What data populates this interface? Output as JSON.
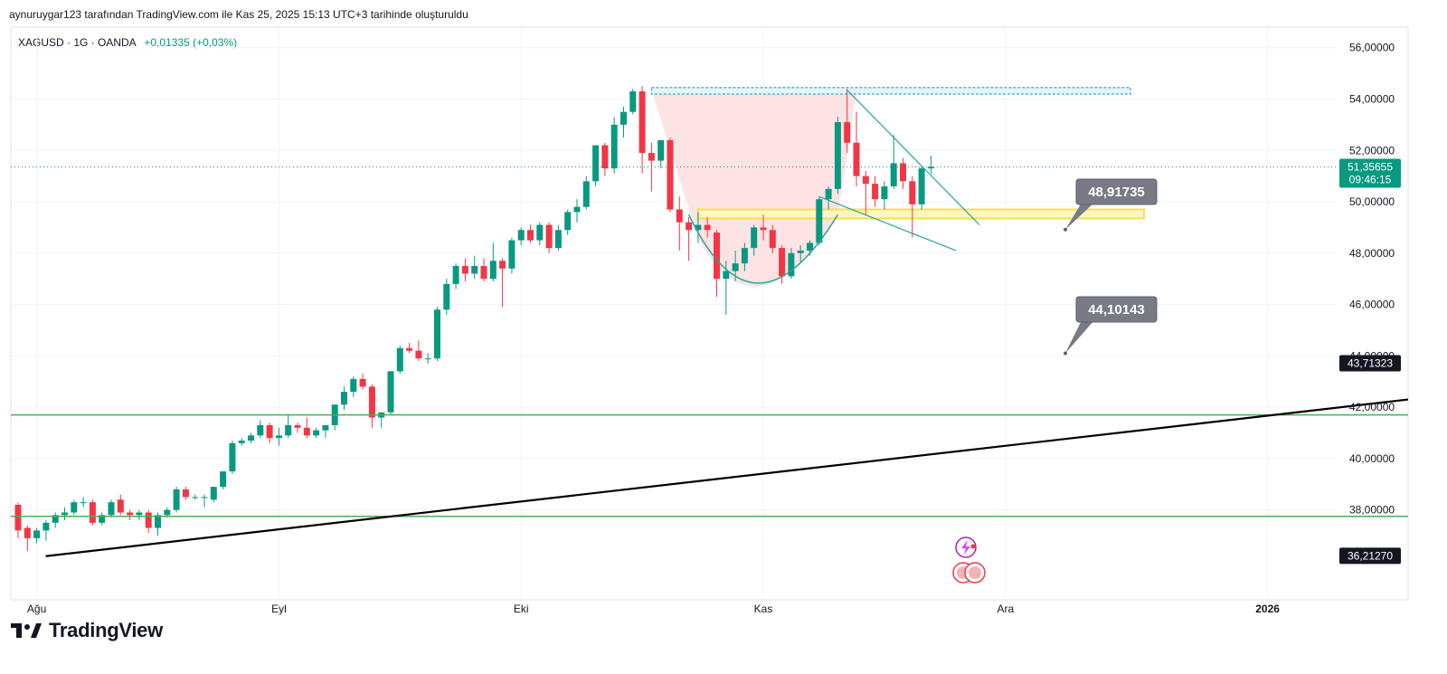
{
  "header": {
    "created_text": "aynuruygar123 tarafından TradingView.com ile Kas 25, 2025 15:13 UTC+3 tarihinde oluşturuldu"
  },
  "symbol": {
    "label": "XAGUSD · 1G · OANDA",
    "change": "+0,01335 (+0,03%)"
  },
  "footer": {
    "brand": "TradingView"
  },
  "colors": {
    "up": "#089981",
    "down": "#f23645",
    "grid": "#f0f3fa",
    "trend": "#000000",
    "hline": "#4caf50",
    "channel": "#26a69a",
    "zone_fill": "#fde3e3",
    "yellow": "#f5e050",
    "callout": "#787b86",
    "dark_label": "#131722",
    "cyan_box": "#5fb6d4"
  },
  "chart_data": {
    "type": "candlestick",
    "symbol": "XAGUSD",
    "interval": "1G",
    "ylim": [
      34.5,
      56.8
    ],
    "y_ticks": [
      "56,00000",
      "54,00000",
      "52,00000",
      "50,00000",
      "48,00000",
      "46,00000",
      "44,00000",
      "42,00000",
      "40,00000",
      "38,00000"
    ],
    "x_ticks": [
      "Ağu",
      "Eyl",
      "Eki",
      "Kas",
      "Ara",
      "2026"
    ],
    "price_tag": {
      "value": "51,35655",
      "countdown": "09:46:15",
      "price": 51.35655
    },
    "axis_labels": [
      {
        "text": "43,71323",
        "price": 43.71323
      },
      {
        "text": "36,21270",
        "price": 36.2127
      }
    ],
    "callouts": [
      {
        "text": "48,91735",
        "price": 48.91735
      },
      {
        "text": "44,10143",
        "price": 44.10143
      }
    ],
    "horizontal_lines": [
      41.7,
      37.75
    ],
    "trendline": {
      "from": [
        "Ağu",
        36.2
      ],
      "to": [
        "2026",
        42.3
      ]
    },
    "yellow_zone": [
      49.35,
      49.7
    ],
    "cyan_zone": [
      54.3,
      54.45
    ],
    "candles": [
      {
        "o": 38.2,
        "h": 38.3,
        "l": 36.9,
        "c": 37.2
      },
      {
        "o": 37.3,
        "h": 37.4,
        "l": 36.4,
        "c": 36.9
      },
      {
        "o": 36.9,
        "h": 37.3,
        "l": 36.7,
        "c": 37.2
      },
      {
        "o": 37.2,
        "h": 37.6,
        "l": 36.8,
        "c": 37.5
      },
      {
        "o": 37.5,
        "h": 37.9,
        "l": 37.3,
        "c": 37.8
      },
      {
        "o": 37.8,
        "h": 38.1,
        "l": 37.6,
        "c": 37.9
      },
      {
        "o": 37.9,
        "h": 38.4,
        "l": 37.8,
        "c": 38.3
      },
      {
        "o": 38.3,
        "h": 38.5,
        "l": 38.1,
        "c": 38.3
      },
      {
        "o": 38.3,
        "h": 38.4,
        "l": 37.4,
        "c": 37.5
      },
      {
        "o": 37.5,
        "h": 37.9,
        "l": 37.4,
        "c": 37.8
      },
      {
        "o": 37.8,
        "h": 38.4,
        "l": 37.7,
        "c": 38.3
      },
      {
        "o": 38.4,
        "h": 38.6,
        "l": 37.8,
        "c": 37.9
      },
      {
        "o": 37.9,
        "h": 38.0,
        "l": 37.6,
        "c": 37.8
      },
      {
        "o": 37.8,
        "h": 38.0,
        "l": 37.6,
        "c": 37.9
      },
      {
        "o": 37.9,
        "h": 38.0,
        "l": 37.1,
        "c": 37.3
      },
      {
        "o": 37.3,
        "h": 37.9,
        "l": 37.0,
        "c": 37.8
      },
      {
        "o": 37.8,
        "h": 38.1,
        "l": 37.7,
        "c": 38.0
      },
      {
        "o": 38.0,
        "h": 38.9,
        "l": 37.9,
        "c": 38.8
      },
      {
        "o": 38.8,
        "h": 38.9,
        "l": 38.4,
        "c": 38.5
      },
      {
        "o": 38.5,
        "h": 38.6,
        "l": 38.4,
        "c": 38.5
      },
      {
        "o": 38.5,
        "h": 38.6,
        "l": 38.1,
        "c": 38.5
      },
      {
        "o": 38.4,
        "h": 38.9,
        "l": 38.3,
        "c": 38.9
      },
      {
        "o": 38.9,
        "h": 39.5,
        "l": 38.8,
        "c": 39.5
      },
      {
        "o": 39.5,
        "h": 40.7,
        "l": 39.4,
        "c": 40.6
      },
      {
        "o": 40.6,
        "h": 40.8,
        "l": 40.5,
        "c": 40.7
      },
      {
        "o": 40.7,
        "h": 41.0,
        "l": 40.6,
        "c": 40.9
      },
      {
        "o": 40.9,
        "h": 41.5,
        "l": 40.8,
        "c": 41.3
      },
      {
        "o": 41.3,
        "h": 41.4,
        "l": 40.6,
        "c": 40.8
      },
      {
        "o": 40.8,
        "h": 41.2,
        "l": 40.5,
        "c": 40.9
      },
      {
        "o": 40.9,
        "h": 41.7,
        "l": 40.8,
        "c": 41.3
      },
      {
        "o": 41.3,
        "h": 41.4,
        "l": 41.0,
        "c": 41.2
      },
      {
        "o": 41.2,
        "h": 41.6,
        "l": 40.8,
        "c": 40.9
      },
      {
        "o": 40.9,
        "h": 41.2,
        "l": 40.8,
        "c": 41.1
      },
      {
        "o": 41.1,
        "h": 41.3,
        "l": 40.8,
        "c": 41.3
      },
      {
        "o": 41.3,
        "h": 42.1,
        "l": 41.1,
        "c": 42.1
      },
      {
        "o": 42.1,
        "h": 42.8,
        "l": 41.9,
        "c": 42.6
      },
      {
        "o": 42.6,
        "h": 43.2,
        "l": 42.4,
        "c": 43.1
      },
      {
        "o": 43.1,
        "h": 43.3,
        "l": 42.7,
        "c": 42.8
      },
      {
        "o": 42.8,
        "h": 42.9,
        "l": 41.2,
        "c": 41.6
      },
      {
        "o": 41.6,
        "h": 41.8,
        "l": 41.2,
        "c": 41.8
      },
      {
        "o": 41.8,
        "h": 43.4,
        "l": 41.7,
        "c": 43.4
      },
      {
        "o": 43.4,
        "h": 44.4,
        "l": 43.3,
        "c": 44.3
      },
      {
        "o": 44.3,
        "h": 44.5,
        "l": 44.1,
        "c": 44.2
      },
      {
        "o": 44.2,
        "h": 44.6,
        "l": 43.8,
        "c": 43.9
      },
      {
        "o": 43.9,
        "h": 44.1,
        "l": 43.7,
        "c": 43.9
      },
      {
        "o": 43.9,
        "h": 45.9,
        "l": 43.8,
        "c": 45.8
      },
      {
        "o": 45.8,
        "h": 47.0,
        "l": 45.6,
        "c": 46.8
      },
      {
        "o": 46.8,
        "h": 47.6,
        "l": 46.6,
        "c": 47.5
      },
      {
        "o": 47.5,
        "h": 47.8,
        "l": 46.9,
        "c": 47.2
      },
      {
        "o": 47.2,
        "h": 47.9,
        "l": 47.0,
        "c": 47.5
      },
      {
        "o": 47.5,
        "h": 47.8,
        "l": 46.9,
        "c": 47.0
      },
      {
        "o": 47.0,
        "h": 48.4,
        "l": 46.9,
        "c": 47.7
      },
      {
        "o": 47.7,
        "h": 47.8,
        "l": 45.9,
        "c": 47.4
      },
      {
        "o": 47.4,
        "h": 48.6,
        "l": 47.2,
        "c": 48.5
      },
      {
        "o": 48.5,
        "h": 49.0,
        "l": 48.3,
        "c": 48.9
      },
      {
        "o": 48.9,
        "h": 49.1,
        "l": 48.4,
        "c": 48.5
      },
      {
        "o": 48.5,
        "h": 49.2,
        "l": 48.3,
        "c": 49.1
      },
      {
        "o": 49.1,
        "h": 49.2,
        "l": 48.0,
        "c": 48.2
      },
      {
        "o": 48.2,
        "h": 49.1,
        "l": 48.1,
        "c": 48.9
      },
      {
        "o": 48.9,
        "h": 49.7,
        "l": 48.7,
        "c": 49.6
      },
      {
        "o": 49.6,
        "h": 50.1,
        "l": 49.2,
        "c": 49.8
      },
      {
        "o": 49.8,
        "h": 51.0,
        "l": 49.7,
        "c": 50.8
      },
      {
        "o": 50.8,
        "h": 52.2,
        "l": 50.6,
        "c": 52.2
      },
      {
        "o": 52.2,
        "h": 52.3,
        "l": 51.0,
        "c": 51.3
      },
      {
        "o": 51.3,
        "h": 53.3,
        "l": 51.1,
        "c": 53.0
      },
      {
        "o": 53.0,
        "h": 53.7,
        "l": 52.5,
        "c": 53.5
      },
      {
        "o": 53.5,
        "h": 54.4,
        "l": 53.4,
        "c": 54.3
      },
      {
        "o": 54.3,
        "h": 54.5,
        "l": 51.1,
        "c": 51.9
      },
      {
        "o": 51.9,
        "h": 52.3,
        "l": 50.4,
        "c": 51.6
      },
      {
        "o": 51.6,
        "h": 52.4,
        "l": 51.3,
        "c": 52.4
      },
      {
        "o": 52.4,
        "h": 52.5,
        "l": 49.6,
        "c": 49.7
      },
      {
        "o": 49.7,
        "h": 50.2,
        "l": 48.1,
        "c": 49.2
      },
      {
        "o": 49.2,
        "h": 49.4,
        "l": 47.7,
        "c": 48.9
      },
      {
        "o": 48.9,
        "h": 49.6,
        "l": 48.4,
        "c": 49.1
      },
      {
        "o": 49.1,
        "h": 49.4,
        "l": 48.6,
        "c": 48.9
      },
      {
        "o": 48.8,
        "h": 48.9,
        "l": 46.3,
        "c": 47.0
      },
      {
        "o": 47.0,
        "h": 47.7,
        "l": 45.6,
        "c": 47.3
      },
      {
        "o": 47.3,
        "h": 48.1,
        "l": 46.9,
        "c": 47.6
      },
      {
        "o": 47.6,
        "h": 48.4,
        "l": 47.3,
        "c": 48.2
      },
      {
        "o": 48.2,
        "h": 49.1,
        "l": 47.9,
        "c": 49.0
      },
      {
        "o": 49.0,
        "h": 49.5,
        "l": 48.5,
        "c": 48.9
      },
      {
        "o": 48.9,
        "h": 49.1,
        "l": 48.0,
        "c": 48.2
      },
      {
        "o": 48.2,
        "h": 48.3,
        "l": 46.8,
        "c": 47.1
      },
      {
        "o": 47.1,
        "h": 48.2,
        "l": 47.0,
        "c": 48.0
      },
      {
        "o": 48.0,
        "h": 48.3,
        "l": 47.6,
        "c": 48.1
      },
      {
        "o": 48.1,
        "h": 48.5,
        "l": 47.9,
        "c": 48.4
      },
      {
        "o": 48.4,
        "h": 50.2,
        "l": 48.3,
        "c": 50.1
      },
      {
        "o": 50.1,
        "h": 50.6,
        "l": 49.7,
        "c": 50.5
      },
      {
        "o": 50.5,
        "h": 53.3,
        "l": 50.3,
        "c": 53.1
      },
      {
        "o": 53.1,
        "h": 54.4,
        "l": 51.9,
        "c": 52.3
      },
      {
        "o": 52.3,
        "h": 53.5,
        "l": 50.6,
        "c": 51.0
      },
      {
        "o": 51.0,
        "h": 51.2,
        "l": 49.5,
        "c": 50.7
      },
      {
        "o": 50.7,
        "h": 51.0,
        "l": 49.8,
        "c": 50.1
      },
      {
        "o": 50.1,
        "h": 50.8,
        "l": 49.7,
        "c": 50.6
      },
      {
        "o": 50.6,
        "h": 52.6,
        "l": 50.5,
        "c": 51.5
      },
      {
        "o": 51.5,
        "h": 51.7,
        "l": 50.5,
        "c": 50.8
      },
      {
        "o": 50.8,
        "h": 51.0,
        "l": 48.6,
        "c": 49.9
      },
      {
        "o": 49.9,
        "h": 51.4,
        "l": 49.7,
        "c": 51.3
      },
      {
        "o": 51.3,
        "h": 51.8,
        "l": 51.1,
        "c": 51.36
      }
    ]
  }
}
